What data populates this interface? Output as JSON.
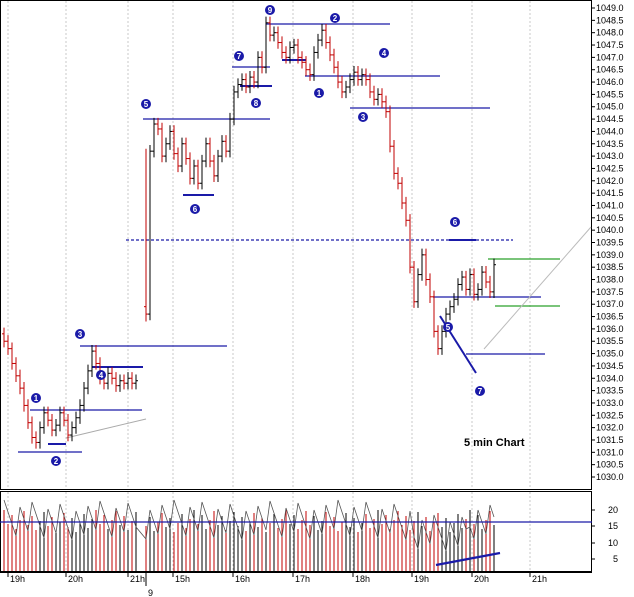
{
  "chart_data": {
    "type": "bar",
    "style": "OHLC price bars, red = down bar, black = up bar",
    "annotation": "5 min Chart",
    "ylim": [
      1029.5,
      1049.3
    ],
    "y_ticks": [
      "1049.0",
      "1048.5",
      "1048.0",
      "1047.5",
      "1047.0",
      "1046.5",
      "1046.0",
      "1045.5",
      "1045.0",
      "1044.5",
      "1044.0",
      "1043.5",
      "1043.0",
      "1042.5",
      "1042.0",
      "1041.5",
      "1041.0",
      "1040.5",
      "1040.0",
      "1039.5",
      "1039.0",
      "1038.5",
      "1038.0",
      "1037.5",
      "1037.0",
      "1036.5",
      "1036.0",
      "1035.5",
      "1035.0",
      "1034.5",
      "1034.0",
      "1033.5",
      "1033.0",
      "1032.5",
      "1032.0",
      "1031.5",
      "1031.0",
      "1030.5",
      "1030.0"
    ],
    "x_labels": [
      "19h",
      "20h",
      "21h",
      "15h",
      "16h",
      "17h",
      "18h",
      "19h",
      "20h",
      "21h"
    ],
    "day_separator_label": "9",
    "sessions": [
      {
        "closes": [
          1035.5,
          1035.2,
          1034.6,
          1034.1,
          1033.6,
          1032.9,
          1032.2,
          1031.6,
          1031.4,
          1032.0,
          1032.6,
          1032.3,
          1031.9,
          1032.1,
          1032.6,
          1032.3,
          1031.7,
          1032.0,
          1032.4,
          1032.9,
          1033.6,
          1034.3,
          1035.1,
          1034.6,
          1034.0,
          1033.8,
          1034.2,
          1034.0,
          1033.7,
          1033.9,
          1033.8,
          1034.0,
          1033.8,
          1033.9
        ]
      },
      {
        "closes": [
          1036.6,
          1043.2,
          1044.3,
          1044.1,
          1043.0,
          1043.5,
          1044.0,
          1043.1,
          1042.6,
          1043.5,
          1042.9,
          1042.1,
          1042.6,
          1041.9,
          1042.8,
          1043.5,
          1042.8,
          1042.2,
          1043.0,
          1043.6,
          1043.2,
          1044.5,
          1045.6,
          1045.9,
          1046.1,
          1045.8,
          1046.2,
          1046.0,
          1047.0,
          1046.6,
          1048.4,
          1047.9,
          1048.0,
          1047.6,
          1047.2,
          1047.0,
          1047.4,
          1047.5,
          1047.0,
          1046.8,
          1046.5,
          1046.3,
          1047.2,
          1047.7,
          1048.1,
          1047.6,
          1047.1,
          1046.6,
          1046.0,
          1045.6,
          1045.8,
          1046.1,
          1046.4,
          1046.1,
          1046.3,
          1046.1,
          1045.6,
          1045.3,
          1045.5,
          1045.2,
          1044.8,
          1043.4,
          1042.3,
          1041.9,
          1041.1,
          1040.4,
          1038.5,
          1037.1,
          1038.2,
          1039.0,
          1038.0,
          1037.3,
          1035.9,
          1035.2,
          1035.9,
          1036.6,
          1036.9,
          1037.2,
          1037.8,
          1038.1,
          1037.6,
          1038.2,
          1037.4,
          1037.6,
          1038.3,
          1037.9,
          1037.5,
          1038.6
        ]
      }
    ],
    "lower_panel": {
      "y_ticks": [
        "20",
        "15",
        "10",
        "5"
      ],
      "reference_level": 16
    },
    "markers": [
      "1",
      "2",
      "3",
      "4",
      "5",
      "6",
      "7",
      "8",
      "9",
      "1",
      "2",
      "3",
      "4",
      "5",
      "6",
      "7"
    ]
  }
}
